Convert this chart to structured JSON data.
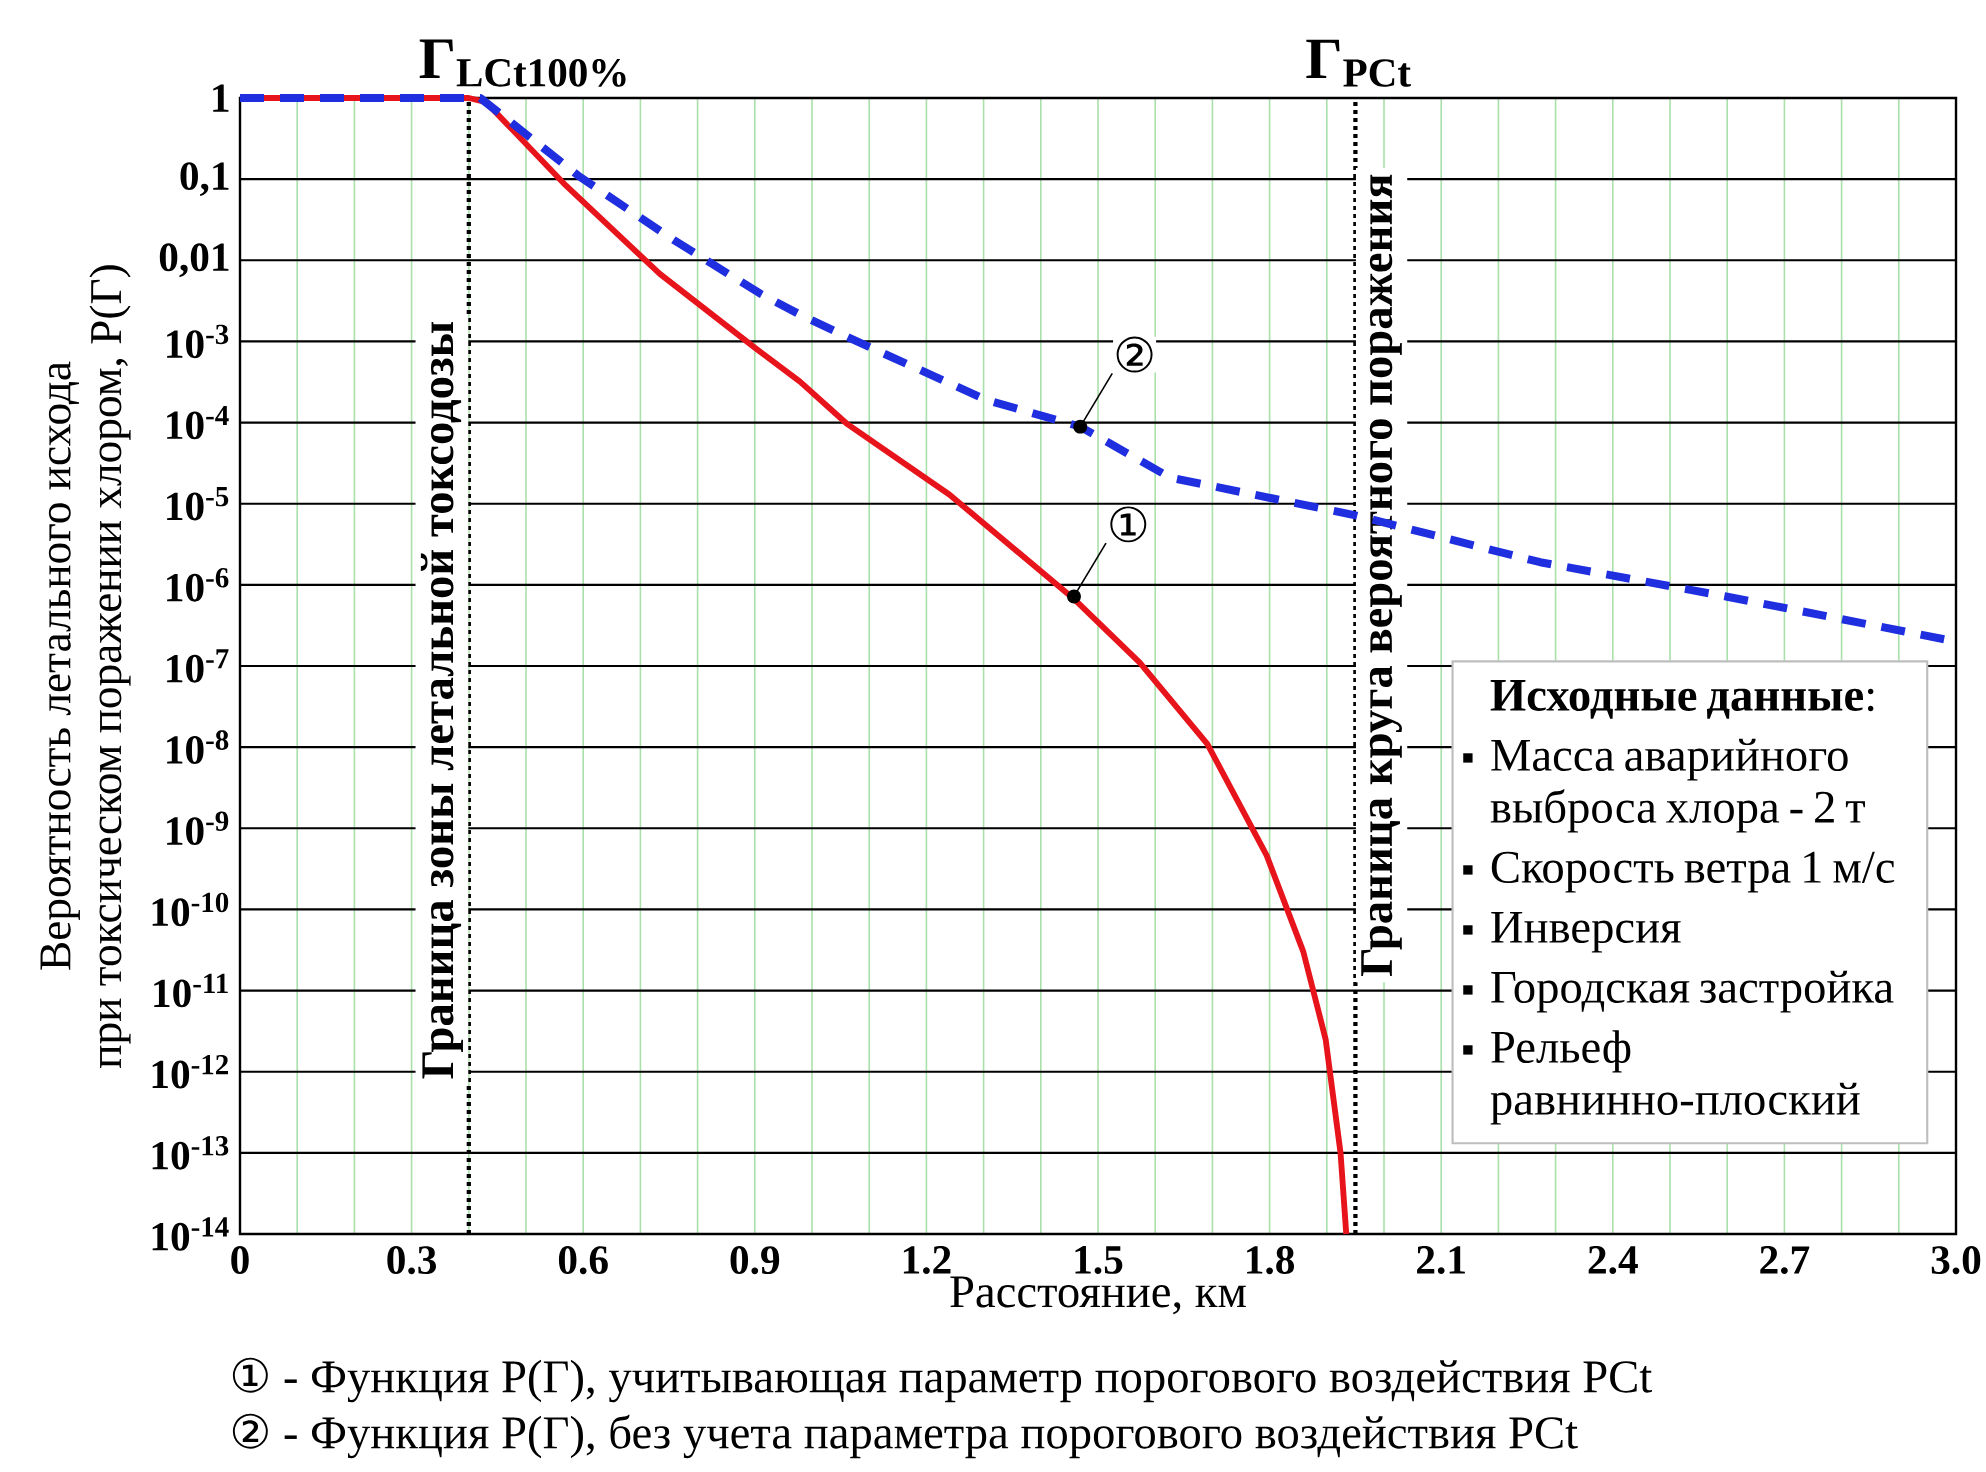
{
  "chart_data": {
    "type": "line",
    "xlabel": "Расстояние, км",
    "ylabel": "Вероятность летального исхода при токсическом поражении хлором, P(Г)",
    "xlim": [
      0,
      3
    ],
    "ylim": [
      1e-14,
      1
    ],
    "log": "y",
    "grid": true,
    "marker": "none",
    "xticks": [
      0,
      0.3,
      0.6,
      0.9,
      1.2,
      1.5,
      1.8,
      2.1,
      2.4,
      2.7,
      {
        "value": 3,
        "label": "3.0"
      }
    ],
    "yticks": [
      1,
      {
        "value": 0.1,
        "label": "0,1"
      },
      {
        "value": 0.01,
        "label": "0,01"
      },
      {
        "value": 0.001,
        "label": "10$^{-3}$"
      },
      {
        "value": 0.0001,
        "label": "10$^{-4}$"
      },
      {
        "value": 1e-05,
        "label": "10$^{-5}$"
      },
      {
        "value": 1e-06,
        "label": "10$^{-6}$"
      },
      {
        "value": 1e-07,
        "label": "10$^{-7}$"
      },
      {
        "value": 1e-08,
        "label": "10$^{-8}$"
      },
      {
        "value": 1e-09,
        "label": "10$^{-9}$"
      },
      {
        "value": 1e-10,
        "label": "10$^{-10}$"
      },
      {
        "value": 1e-11,
        "label": "10$^{-11}$"
      },
      {
        "value": 1e-12,
        "label": "10$^{-12}$"
      },
      {
        "value": 1e-13,
        "label": "10$^{-13}$"
      },
      {
        "value": 1e-14,
        "label": "10$^{-14}$"
      }
    ],
    "series": [
      {
        "color": "#e8141b",
        "line_style": "solid",
        "x": [
          0,
          0.4,
          0.43,
          0.57,
          0.734,
          0.897,
          0.979,
          1.06,
          1.24,
          1.457,
          1.573,
          1.691,
          1.795,
          1.859,
          1.898,
          1.924,
          1.934
        ],
        "values": [
          1,
          1,
          0.89,
          0.083,
          0.0068,
          0.00087,
          0.00032,
          9.8e-05,
          1.3e-05,
          6.8e-07,
          1.1e-07,
          1.1e-08,
          4.6e-10,
          3e-11,
          2.5e-12,
          1e-13,
          1e-14
        ]
      },
      {
        "color": "#1f2fe0",
        "line_style": "dashed",
        "x": [
          0,
          0.42,
          0.594,
          0.758,
          0.909,
          0.979,
          1.072,
          1.305,
          1.469,
          1.626,
          1.95,
          2.273,
          2.598,
          3.0
        ],
        "values": [
          1,
          1,
          0.107,
          0.0178,
          0.0039,
          0.00214,
          0.00105,
          0.00019,
          8.9e-05,
          2.1e-05,
          7.2e-06,
          1.9e-06,
          7.2e-07,
          2e-07
        ]
      }
    ],
    "ref_lines": [
      {
        "axis": "x",
        "value": 0.4,
        "label": "Граница зоны летальной токсодозы",
        "color": "#000000",
        "line_style": "dotted"
      },
      {
        "axis": "x",
        "value": 1.95,
        "label": "Граница круга вероятного поражения",
        "color": "#000000",
        "line_style": "dotted"
      }
    ],
    "annotations": [
      {
        "text": "Г$_{LCt100%}$",
        "x": 0.4,
        "y": 1
      },
      {
        "text": "Г$_{PCt}$",
        "x": 1.95,
        "y": 1
      },
      {
        "text": "①",
        "x": 1.458,
        "y": 7.2e-07
      },
      {
        "text": "②",
        "x": 1.469,
        "y": 8.9e-05
      },
      "**Исходные данные**:",
      "Масса аварийного выброса хлора - 2 т",
      "Скорость ветра 1 м/с",
      "Инверсия",
      "Городская застройка",
      "Рельеф равнинно-плоский",
      "① - Функция P(Г), учитывающая параметр порогового воздействия PCt",
      "② - Функция P(Г), без учета параметра порогового воздействия PCt"
    ]
  }
}
